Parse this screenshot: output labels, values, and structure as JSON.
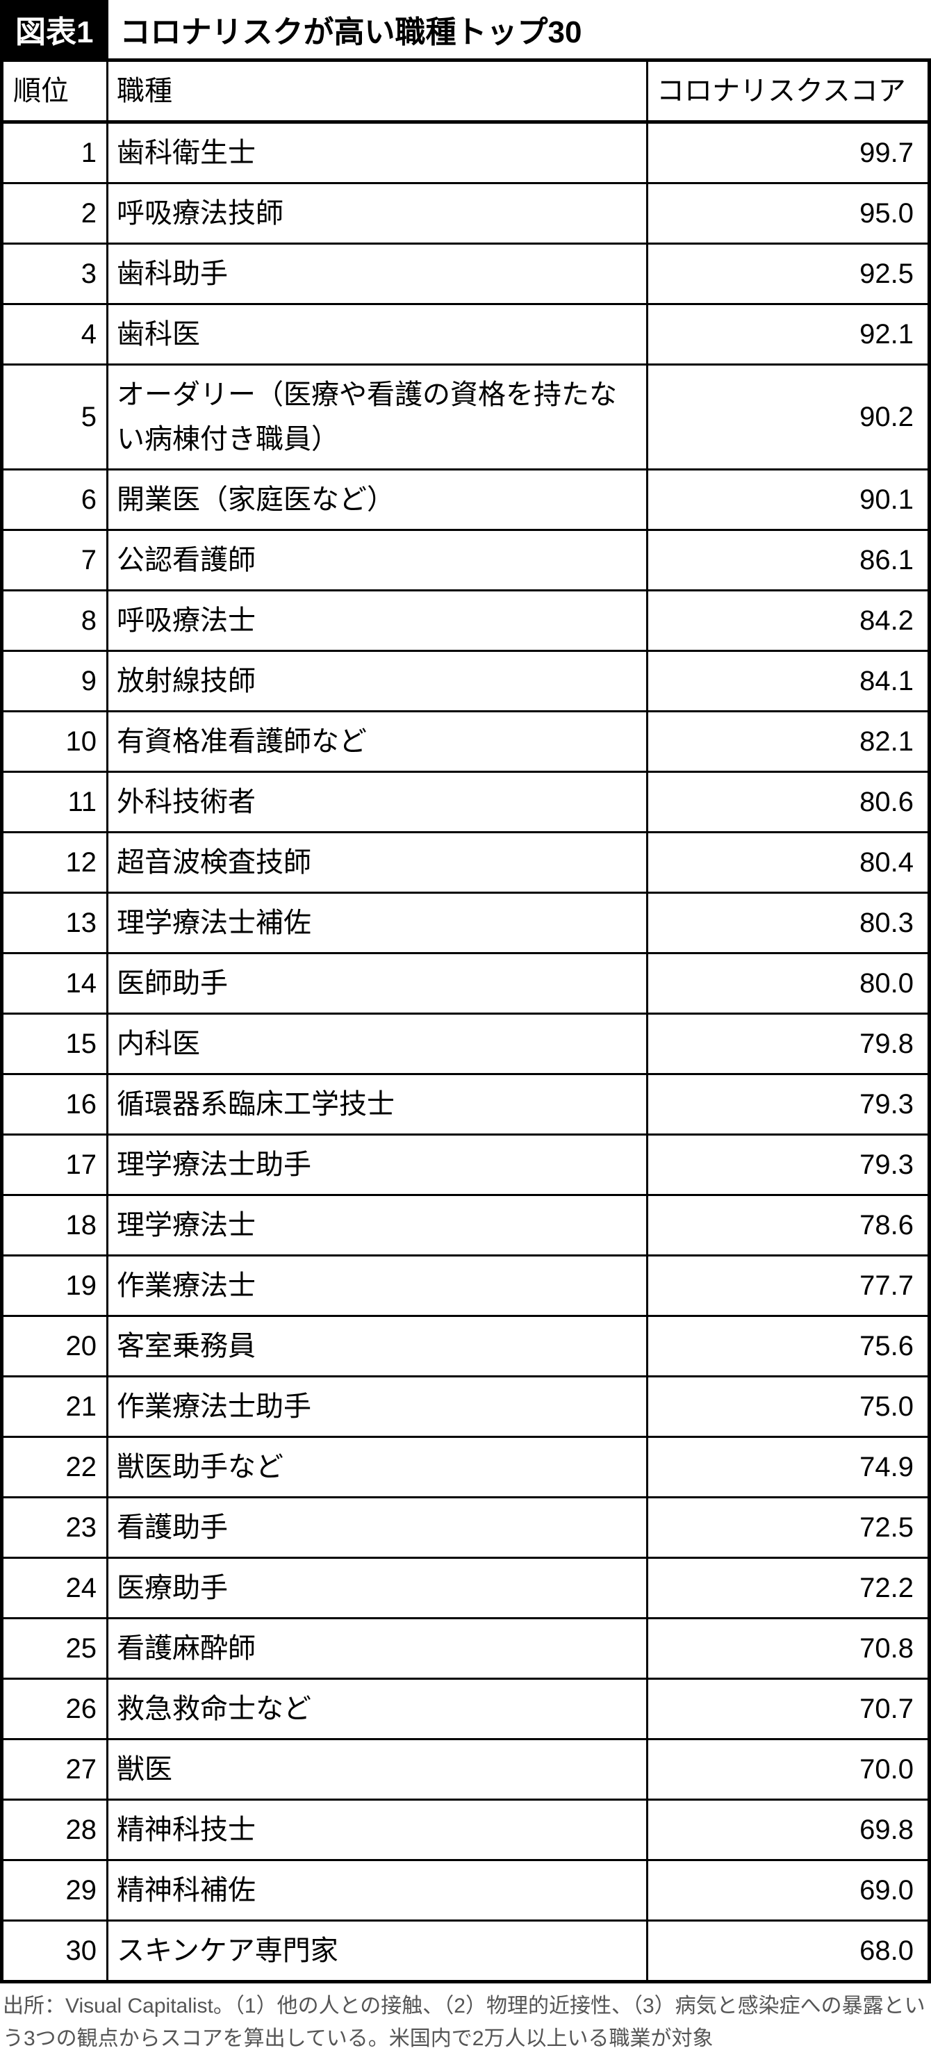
{
  "header": {
    "figure_label": "図表1",
    "title": "コロナリスクが高い職種トップ30"
  },
  "table": {
    "columns": {
      "rank": "順位",
      "job": "職種",
      "score": "コロナリスクスコア"
    },
    "rows": [
      {
        "rank": "1",
        "job": "歯科衛生士",
        "score": "99.7"
      },
      {
        "rank": "2",
        "job": "呼吸療法技師",
        "score": "95.0"
      },
      {
        "rank": "3",
        "job": "歯科助手",
        "score": "92.5"
      },
      {
        "rank": "4",
        "job": "歯科医",
        "score": "92.1"
      },
      {
        "rank": "5",
        "job": "オーダリー（医療や看護の資格を持たない病棟付き職員）",
        "score": "90.2"
      },
      {
        "rank": "6",
        "job": "開業医（家庭医など）",
        "score": "90.1"
      },
      {
        "rank": "7",
        "job": "公認看護師",
        "score": "86.1"
      },
      {
        "rank": "8",
        "job": "呼吸療法士",
        "score": "84.2"
      },
      {
        "rank": "9",
        "job": "放射線技師",
        "score": "84.1"
      },
      {
        "rank": "10",
        "job": "有資格准看護師など",
        "score": "82.1"
      },
      {
        "rank": "11",
        "job": "外科技術者",
        "score": "80.6"
      },
      {
        "rank": "12",
        "job": "超音波検査技師",
        "score": "80.4"
      },
      {
        "rank": "13",
        "job": "理学療法士補佐",
        "score": "80.3"
      },
      {
        "rank": "14",
        "job": "医師助手",
        "score": "80.0"
      },
      {
        "rank": "15",
        "job": "内科医",
        "score": "79.8"
      },
      {
        "rank": "16",
        "job": "循環器系臨床工学技士",
        "score": "79.3"
      },
      {
        "rank": "17",
        "job": "理学療法士助手",
        "score": "79.3"
      },
      {
        "rank": "18",
        "job": "理学療法士",
        "score": "78.6"
      },
      {
        "rank": "19",
        "job": "作業療法士",
        "score": "77.7"
      },
      {
        "rank": "20",
        "job": "客室乗務員",
        "score": "75.6"
      },
      {
        "rank": "21",
        "job": "作業療法士助手",
        "score": "75.0"
      },
      {
        "rank": "22",
        "job": "獣医助手など",
        "score": "74.9"
      },
      {
        "rank": "23",
        "job": "看護助手",
        "score": "72.5"
      },
      {
        "rank": "24",
        "job": "医療助手",
        "score": "72.2"
      },
      {
        "rank": "25",
        "job": "看護麻酔師",
        "score": "70.8"
      },
      {
        "rank": "26",
        "job": "救急救命士など",
        "score": "70.7"
      },
      {
        "rank": "27",
        "job": "獣医",
        "score": "70.0"
      },
      {
        "rank": "28",
        "job": "精神科技士",
        "score": "69.8"
      },
      {
        "rank": "29",
        "job": "精神科補佐",
        "score": "69.0"
      },
      {
        "rank": "30",
        "job": "スキンケア専門家",
        "score": "68.0"
      }
    ]
  },
  "footnote": "出所：Visual Capitalist。（1）他の人との接触、（2）物理的近接性、（3）病気と感染症への暴露という3つの観点からスコアを算出している。米国内で2万人以上いる職業が対象",
  "styling": {
    "type": "table",
    "background_color": "#ffffff",
    "border_color": "#000000",
    "text_color": "#000000",
    "footnote_color": "#555555",
    "title_fontsize": 44,
    "table_fontsize": 40,
    "footnote_fontsize": 30,
    "outer_border_width": 5,
    "inner_border_width": 3,
    "col_rank_width": 120,
    "col_score_width": 370
  }
}
